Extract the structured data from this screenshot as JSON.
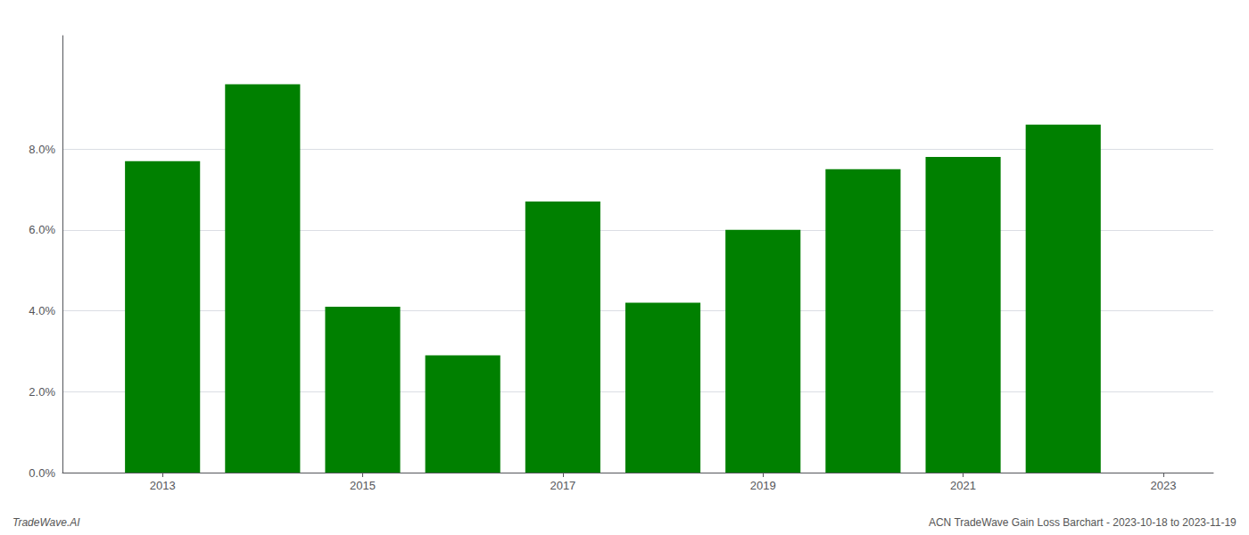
{
  "chart_data": {
    "type": "bar",
    "x": [
      2013,
      2014,
      2015,
      2016,
      2017,
      2018,
      2019,
      2020,
      2021,
      2022
    ],
    "values": [
      0.077,
      0.096,
      0.041,
      0.029,
      0.067,
      0.042,
      0.06,
      0.075,
      0.078,
      0.086
    ],
    "color": "#008000",
    "xlim": [
      2012.0,
      2023.5
    ],
    "xticks": [
      2013,
      2015,
      2017,
      2019,
      2021,
      2023
    ],
    "ylim": [
      0,
      0.108
    ],
    "yticks": [
      {
        "value": 0.0,
        "label": "0.0%"
      },
      {
        "value": 0.02,
        "label": "2.0%"
      },
      {
        "value": 0.04,
        "label": "4.0%"
      },
      {
        "value": 0.06,
        "label": "6.0%"
      },
      {
        "value": 0.08,
        "label": "8.0%"
      }
    ],
    "grid": true,
    "annotations": [
      "TradeWave.AI",
      "ACN TradeWave Gain Loss Barchart - 2023-10-18 to 2023-11-19"
    ]
  }
}
